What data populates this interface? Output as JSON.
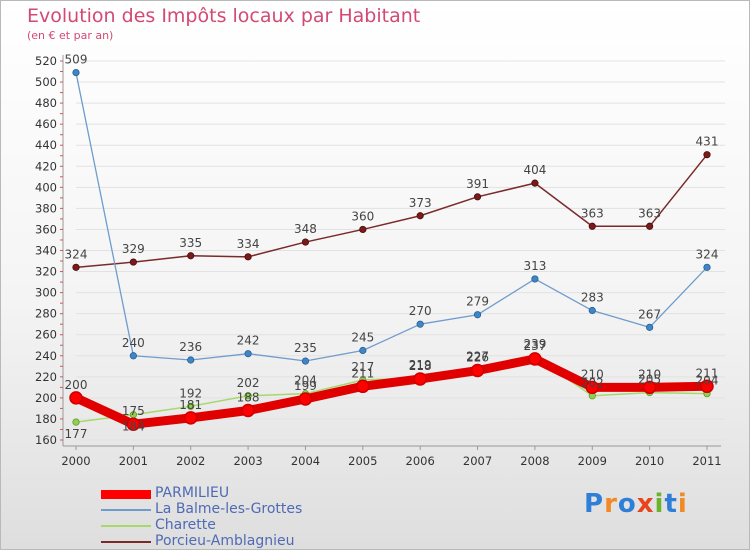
{
  "chart_data": {
    "type": "line",
    "title": "Evolution des Impôts locaux par Habitant",
    "subtitle": "(en € et par an)",
    "x": [
      "2000",
      "2001",
      "2002",
      "2003",
      "2004",
      "2005",
      "2006",
      "2007",
      "2008",
      "2009",
      "2010",
      "2011"
    ],
    "ylim": [
      160,
      520
    ],
    "yticks": [
      160,
      180,
      200,
      220,
      240,
      260,
      280,
      300,
      320,
      340,
      360,
      380,
      400,
      420,
      440,
      460,
      480,
      500,
      520
    ],
    "series": [
      {
        "name": "PARMILIEU",
        "color": "#ff0000",
        "values": [
          200,
          175,
          181,
          188,
          199,
          211,
          218,
          226,
          237,
          210,
          210,
          211
        ],
        "labels": [
          "200",
          "175",
          "181",
          "188",
          "199",
          "211",
          "218",
          "226",
          "237",
          "210",
          "210",
          "211"
        ]
      },
      {
        "name": "La Balme-les-Grottes",
        "color": "#6f9ccc",
        "values": [
          509,
          240,
          236,
          242,
          235,
          245,
          270,
          279,
          313,
          283,
          267,
          324
        ],
        "labels": [
          "509",
          "240",
          "236",
          "242",
          "235",
          "245",
          "270",
          "279",
          "313",
          "283",
          "267",
          "324"
        ]
      },
      {
        "name": "Charette",
        "color": "#a6d86a",
        "values": [
          177,
          184,
          192,
          202,
          204,
          217,
          219,
          227,
          239,
          202,
          205,
          204
        ],
        "labels": [
          "177",
          "184",
          "192",
          "202",
          "204",
          "217",
          "219",
          "227",
          "239",
          "202",
          "205",
          "204"
        ]
      },
      {
        "name": "Porcieu-Amblagnieu",
        "color": "#7a2a2a",
        "values": [
          324,
          329,
          335,
          334,
          348,
          360,
          373,
          391,
          404,
          363,
          363,
          431
        ],
        "labels": [
          "324",
          "329",
          "335",
          "334",
          "348",
          "360",
          "373",
          "391",
          "404",
          "363",
          "363",
          "431"
        ]
      }
    ]
  },
  "logo": {
    "text": "Proxiti",
    "letters": [
      "P",
      "r",
      "o",
      "x",
      "i",
      "t",
      "i"
    ],
    "colors": [
      "#2f7ed8",
      "#f08a24",
      "#2f7ed8",
      "#e8451e",
      "#6ab42d",
      "#2f7ed8",
      "#f08a24"
    ]
  }
}
